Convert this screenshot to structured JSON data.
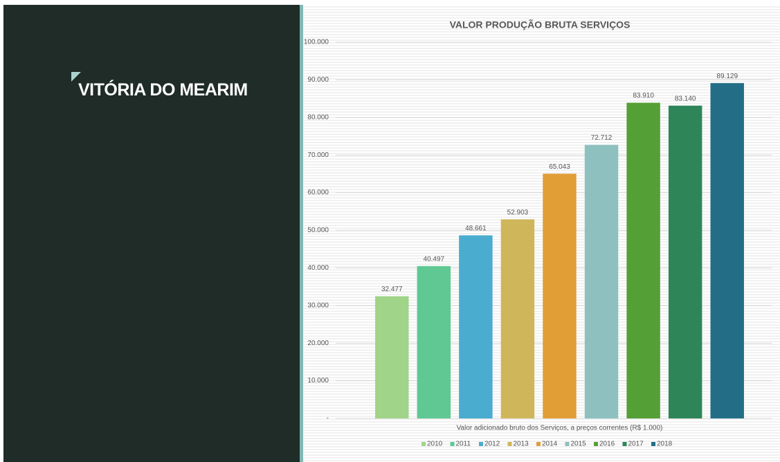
{
  "slide": {
    "heading": "VITÓRIA DO MEARIM"
  },
  "chart_data": {
    "type": "bar",
    "title": "VALOR PRODUÇÃO BRUTA SERVIÇOS",
    "categories": [
      "Valor adicionado bruto dos Serviços, a preços correntes (R$ 1.000)"
    ],
    "series": [
      {
        "name": "2010",
        "color": "#a0d488",
        "values": [
          32477
        ],
        "value_labels": [
          "32.477"
        ]
      },
      {
        "name": "2011",
        "color": "#5fc893",
        "values": [
          40497
        ],
        "value_labels": [
          "40.497"
        ]
      },
      {
        "name": "2012",
        "color": "#4aaccf",
        "values": [
          48661
        ],
        "value_labels": [
          "48.661"
        ]
      },
      {
        "name": "2013",
        "color": "#d0b65a",
        "values": [
          52903
        ],
        "value_labels": [
          "52.903"
        ]
      },
      {
        "name": "2014",
        "color": "#e19e37",
        "values": [
          65043
        ],
        "value_labels": [
          "65.043"
        ]
      },
      {
        "name": "2015",
        "color": "#8fc0c0",
        "values": [
          72712
        ],
        "value_labels": [
          "72.712"
        ]
      },
      {
        "name": "2016",
        "color": "#559f37",
        "values": [
          83910
        ],
        "value_labels": [
          "83.910"
        ]
      },
      {
        "name": "2017",
        "color": "#2e8658",
        "values": [
          83140
        ],
        "value_labels": [
          "83.140"
        ]
      },
      {
        "name": "2018",
        "color": "#236e86",
        "values": [
          89129
        ],
        "value_labels": [
          "89.129"
        ]
      }
    ],
    "ylim": [
      0,
      100000
    ],
    "yticks": [
      {
        "value": 0,
        "label": "-"
      },
      {
        "value": 10000,
        "label": "10.000"
      },
      {
        "value": 20000,
        "label": "20.000"
      },
      {
        "value": 30000,
        "label": "30.000"
      },
      {
        "value": 40000,
        "label": "40.000"
      },
      {
        "value": 50000,
        "label": "50.000"
      },
      {
        "value": 60000,
        "label": "60.000"
      },
      {
        "value": 70000,
        "label": "70.000"
      },
      {
        "value": 80000,
        "label": "80.000"
      },
      {
        "value": 90000,
        "label": "90.000"
      },
      {
        "value": 100000,
        "label": "100.000"
      }
    ],
    "grid": true,
    "legend": "bottom"
  }
}
